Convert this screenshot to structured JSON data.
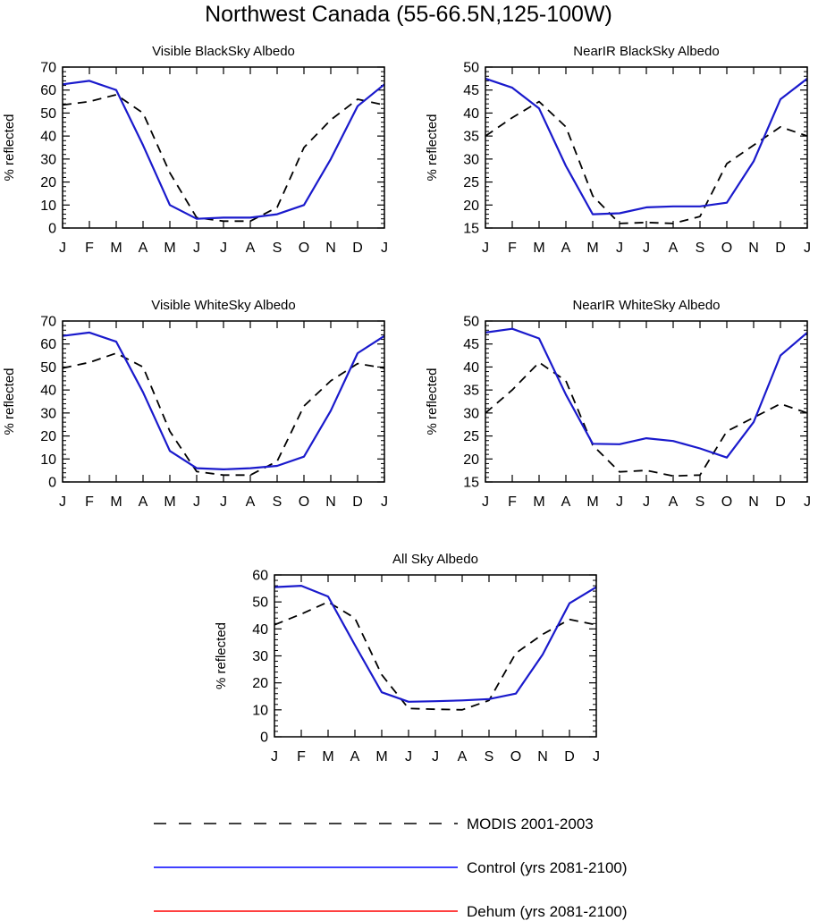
{
  "figure": {
    "title": "Northwest Canada (55-66.5N,125-100W)",
    "months": [
      "J",
      "F",
      "M",
      "A",
      "M",
      "J",
      "J",
      "A",
      "S",
      "O",
      "N",
      "D",
      "J"
    ],
    "ylabel": "% reflected"
  },
  "legend": [
    {
      "name": "MODIS 2001-2003",
      "color": "#000000",
      "style": "dashed"
    },
    {
      "name": "Control (yrs 2081-2100)",
      "color": "#0000ff",
      "style": "solid"
    },
    {
      "name": "Dehum (yrs 2081-2100)",
      "color": "#ff0000",
      "style": "solid"
    }
  ],
  "colors": {
    "modis": "#000000",
    "control": "#1a1acc",
    "dehum": "#ff0000"
  },
  "chart_data": [
    {
      "type": "line",
      "title": "Visible BlackSky Albedo",
      "ylabel": "% reflected",
      "categories": [
        "J",
        "F",
        "M",
        "A",
        "M",
        "J",
        "J",
        "A",
        "S",
        "O",
        "N",
        "D",
        "J"
      ],
      "ylim": [
        0,
        70
      ],
      "yticks": [
        0,
        10,
        20,
        30,
        40,
        50,
        60,
        70
      ],
      "series": [
        {
          "name": "MODIS 2001-2003",
          "values": [
            53.5,
            55,
            58,
            50,
            24,
            4.5,
            3,
            3,
            9,
            35,
            47,
            56,
            53.5
          ]
        },
        {
          "name": "Control (yrs 2081-2100)",
          "values": [
            62.5,
            64,
            60,
            36,
            10,
            4,
            4.5,
            4.5,
            6,
            10,
            30,
            53,
            62.5
          ]
        }
      ]
    },
    {
      "type": "line",
      "title": "NearIR BlackSky Albedo",
      "ylabel": "% reflected",
      "categories": [
        "J",
        "F",
        "M",
        "A",
        "M",
        "J",
        "J",
        "A",
        "S",
        "O",
        "N",
        "D",
        "J"
      ],
      "ylim": [
        15,
        50
      ],
      "yticks": [
        15,
        20,
        25,
        30,
        35,
        40,
        45,
        50
      ],
      "series": [
        {
          "name": "MODIS 2001-2003",
          "values": [
            35,
            39,
            42.5,
            37,
            22,
            16,
            16.2,
            16,
            17.5,
            29,
            33,
            37,
            35
          ]
        },
        {
          "name": "Control (yrs 2081-2100)",
          "values": [
            47.5,
            45.5,
            41,
            28.5,
            18,
            18.2,
            19.5,
            19.7,
            19.7,
            20.5,
            29.5,
            43,
            47.5
          ]
        }
      ]
    },
    {
      "type": "line",
      "title": "Visible WhiteSky Albedo",
      "ylabel": "% reflected",
      "categories": [
        "J",
        "F",
        "M",
        "A",
        "M",
        "J",
        "J",
        "A",
        "S",
        "O",
        "N",
        "D",
        "J"
      ],
      "ylim": [
        0,
        70
      ],
      "yticks": [
        0,
        10,
        20,
        30,
        40,
        50,
        60,
        70
      ],
      "series": [
        {
          "name": "MODIS 2001-2003",
          "values": [
            49.5,
            52,
            56,
            50,
            22,
            4.5,
            3,
            3,
            9,
            33,
            44,
            51.5,
            49.5
          ]
        },
        {
          "name": "Control (yrs 2081-2100)",
          "values": [
            63.5,
            65,
            61,
            39,
            13.5,
            6,
            5.5,
            6,
            7,
            11,
            31,
            56,
            63.5
          ]
        }
      ]
    },
    {
      "type": "line",
      "title": "NearIR WhiteSky Albedo",
      "ylabel": "% reflected",
      "categories": [
        "J",
        "F",
        "M",
        "A",
        "M",
        "J",
        "J",
        "A",
        "S",
        "O",
        "N",
        "D",
        "J"
      ],
      "ylim": [
        15,
        50
      ],
      "yticks": [
        15,
        20,
        25,
        30,
        35,
        40,
        45,
        50
      ],
      "series": [
        {
          "name": "MODIS 2001-2003",
          "values": [
            30,
            35,
            41,
            37,
            23,
            17.2,
            17.5,
            16.3,
            16.5,
            26,
            29,
            32,
            30
          ]
        },
        {
          "name": "Control (yrs 2081-2100)",
          "values": [
            47.5,
            48.3,
            46.2,
            34,
            23.3,
            23.2,
            24.5,
            23.9,
            22.3,
            20.3,
            28,
            42.5,
            47.5
          ]
        }
      ]
    },
    {
      "type": "line",
      "title": "All Sky Albedo",
      "ylabel": "% reflected",
      "categories": [
        "J",
        "F",
        "M",
        "A",
        "M",
        "J",
        "J",
        "A",
        "S",
        "O",
        "N",
        "D",
        "J"
      ],
      "ylim": [
        0,
        60
      ],
      "yticks": [
        0,
        10,
        20,
        30,
        40,
        50,
        60
      ],
      "series": [
        {
          "name": "MODIS 2001-2003",
          "values": [
            41.5,
            45.5,
            50,
            44,
            23,
            10.5,
            10.2,
            10,
            13.5,
            31,
            38,
            43.5,
            41.5
          ]
        },
        {
          "name": "Control (yrs 2081-2100)",
          "values": [
            55.5,
            56,
            52,
            34,
            16.5,
            13,
            13.2,
            13.5,
            14,
            16,
            30.5,
            49.5,
            55.5
          ]
        }
      ]
    }
  ]
}
